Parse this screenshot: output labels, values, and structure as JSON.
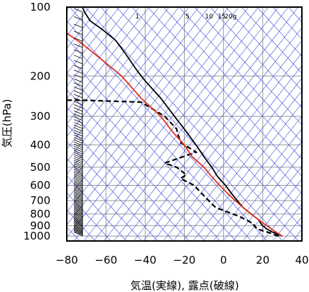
{
  "chart_data": {
    "type": "line",
    "title": "",
    "xlabel": "気温(実線), 露点(破線)",
    "ylabel": "気圧(hPa)",
    "x_ticks": [
      -80,
      -60,
      -40,
      -20,
      0,
      20,
      40
    ],
    "x_tick_labels": [
      "−80",
      "−60",
      "−40",
      "−20",
      "0",
      "20",
      "40"
    ],
    "y_ticks": [
      100,
      200,
      300,
      400,
      500,
      600,
      700,
      800,
      900,
      1000
    ],
    "y_tick_labels": [
      "100",
      "200",
      "300",
      "400",
      "500",
      "600",
      "700",
      "800",
      "900",
      "1000"
    ],
    "xlim": [
      -80,
      40
    ],
    "ylim": [
      1050,
      100
    ],
    "y_scale": "log",
    "grid": true,
    "mixing_ratio_labels": [
      "1",
      "5",
      "10",
      "15",
      "20g"
    ],
    "mixing_ratio_values": [
      1,
      5,
      10,
      15,
      20
    ],
    "series": [
      {
        "role": "temperature",
        "style": "solid",
        "color": "#000000",
        "points": [
          [
            30,
            1000
          ],
          [
            25,
            960
          ],
          [
            22,
            930
          ],
          [
            20,
            900
          ],
          [
            19,
            880
          ],
          [
            18,
            850
          ],
          [
            14,
            800
          ],
          [
            10,
            750
          ],
          [
            7,
            700
          ],
          [
            4,
            650
          ],
          [
            1,
            600
          ],
          [
            -3,
            550
          ],
          [
            -6,
            500
          ],
          [
            -10,
            450
          ],
          [
            -14,
            400
          ],
          [
            -19,
            350
          ],
          [
            -25,
            300
          ],
          [
            -32,
            250
          ],
          [
            -40,
            210
          ],
          [
            -44,
            190
          ],
          [
            -50,
            160
          ],
          [
            -55,
            140
          ],
          [
            -62,
            125
          ],
          [
            -68,
            115
          ],
          [
            -71,
            105
          ],
          [
            -72,
            100
          ]
        ]
      },
      {
        "role": "dewpoint",
        "style": "dashed",
        "color": "#000000",
        "points": [
          [
            28,
            1000
          ],
          [
            24,
            970
          ],
          [
            17,
            930
          ],
          [
            15,
            880
          ],
          [
            8,
            820
          ],
          [
            -4,
            750
          ],
          [
            -9,
            680
          ],
          [
            -12,
            640
          ],
          [
            -15,
            600
          ],
          [
            -22,
            560
          ],
          [
            -19,
            540
          ],
          [
            -24,
            500
          ],
          [
            -30,
            480
          ],
          [
            -14,
            430
          ],
          [
            -22,
            390
          ],
          [
            -24,
            340
          ],
          [
            -30,
            300
          ],
          [
            -42,
            260
          ],
          [
            -72,
            255
          ],
          [
            -80,
            255
          ]
        ]
      },
      {
        "role": "parcel",
        "style": "solid",
        "color": "#e03020",
        "points": [
          [
            30,
            1000
          ],
          [
            26,
            950
          ],
          [
            22,
            900
          ],
          [
            18,
            850
          ],
          [
            14,
            800
          ],
          [
            10,
            750
          ],
          [
            6,
            700
          ],
          [
            2,
            650
          ],
          [
            -2,
            600
          ],
          [
            -6,
            550
          ],
          [
            -10,
            500
          ],
          [
            -16,
            450
          ],
          [
            -20,
            400
          ],
          [
            -26,
            350
          ],
          [
            -32,
            300
          ],
          [
            -42,
            250
          ],
          [
            -52,
            200
          ],
          [
            -62,
            170
          ],
          [
            -72,
            145
          ],
          [
            -80,
            130
          ]
        ]
      }
    ],
    "wind_profile": true
  }
}
